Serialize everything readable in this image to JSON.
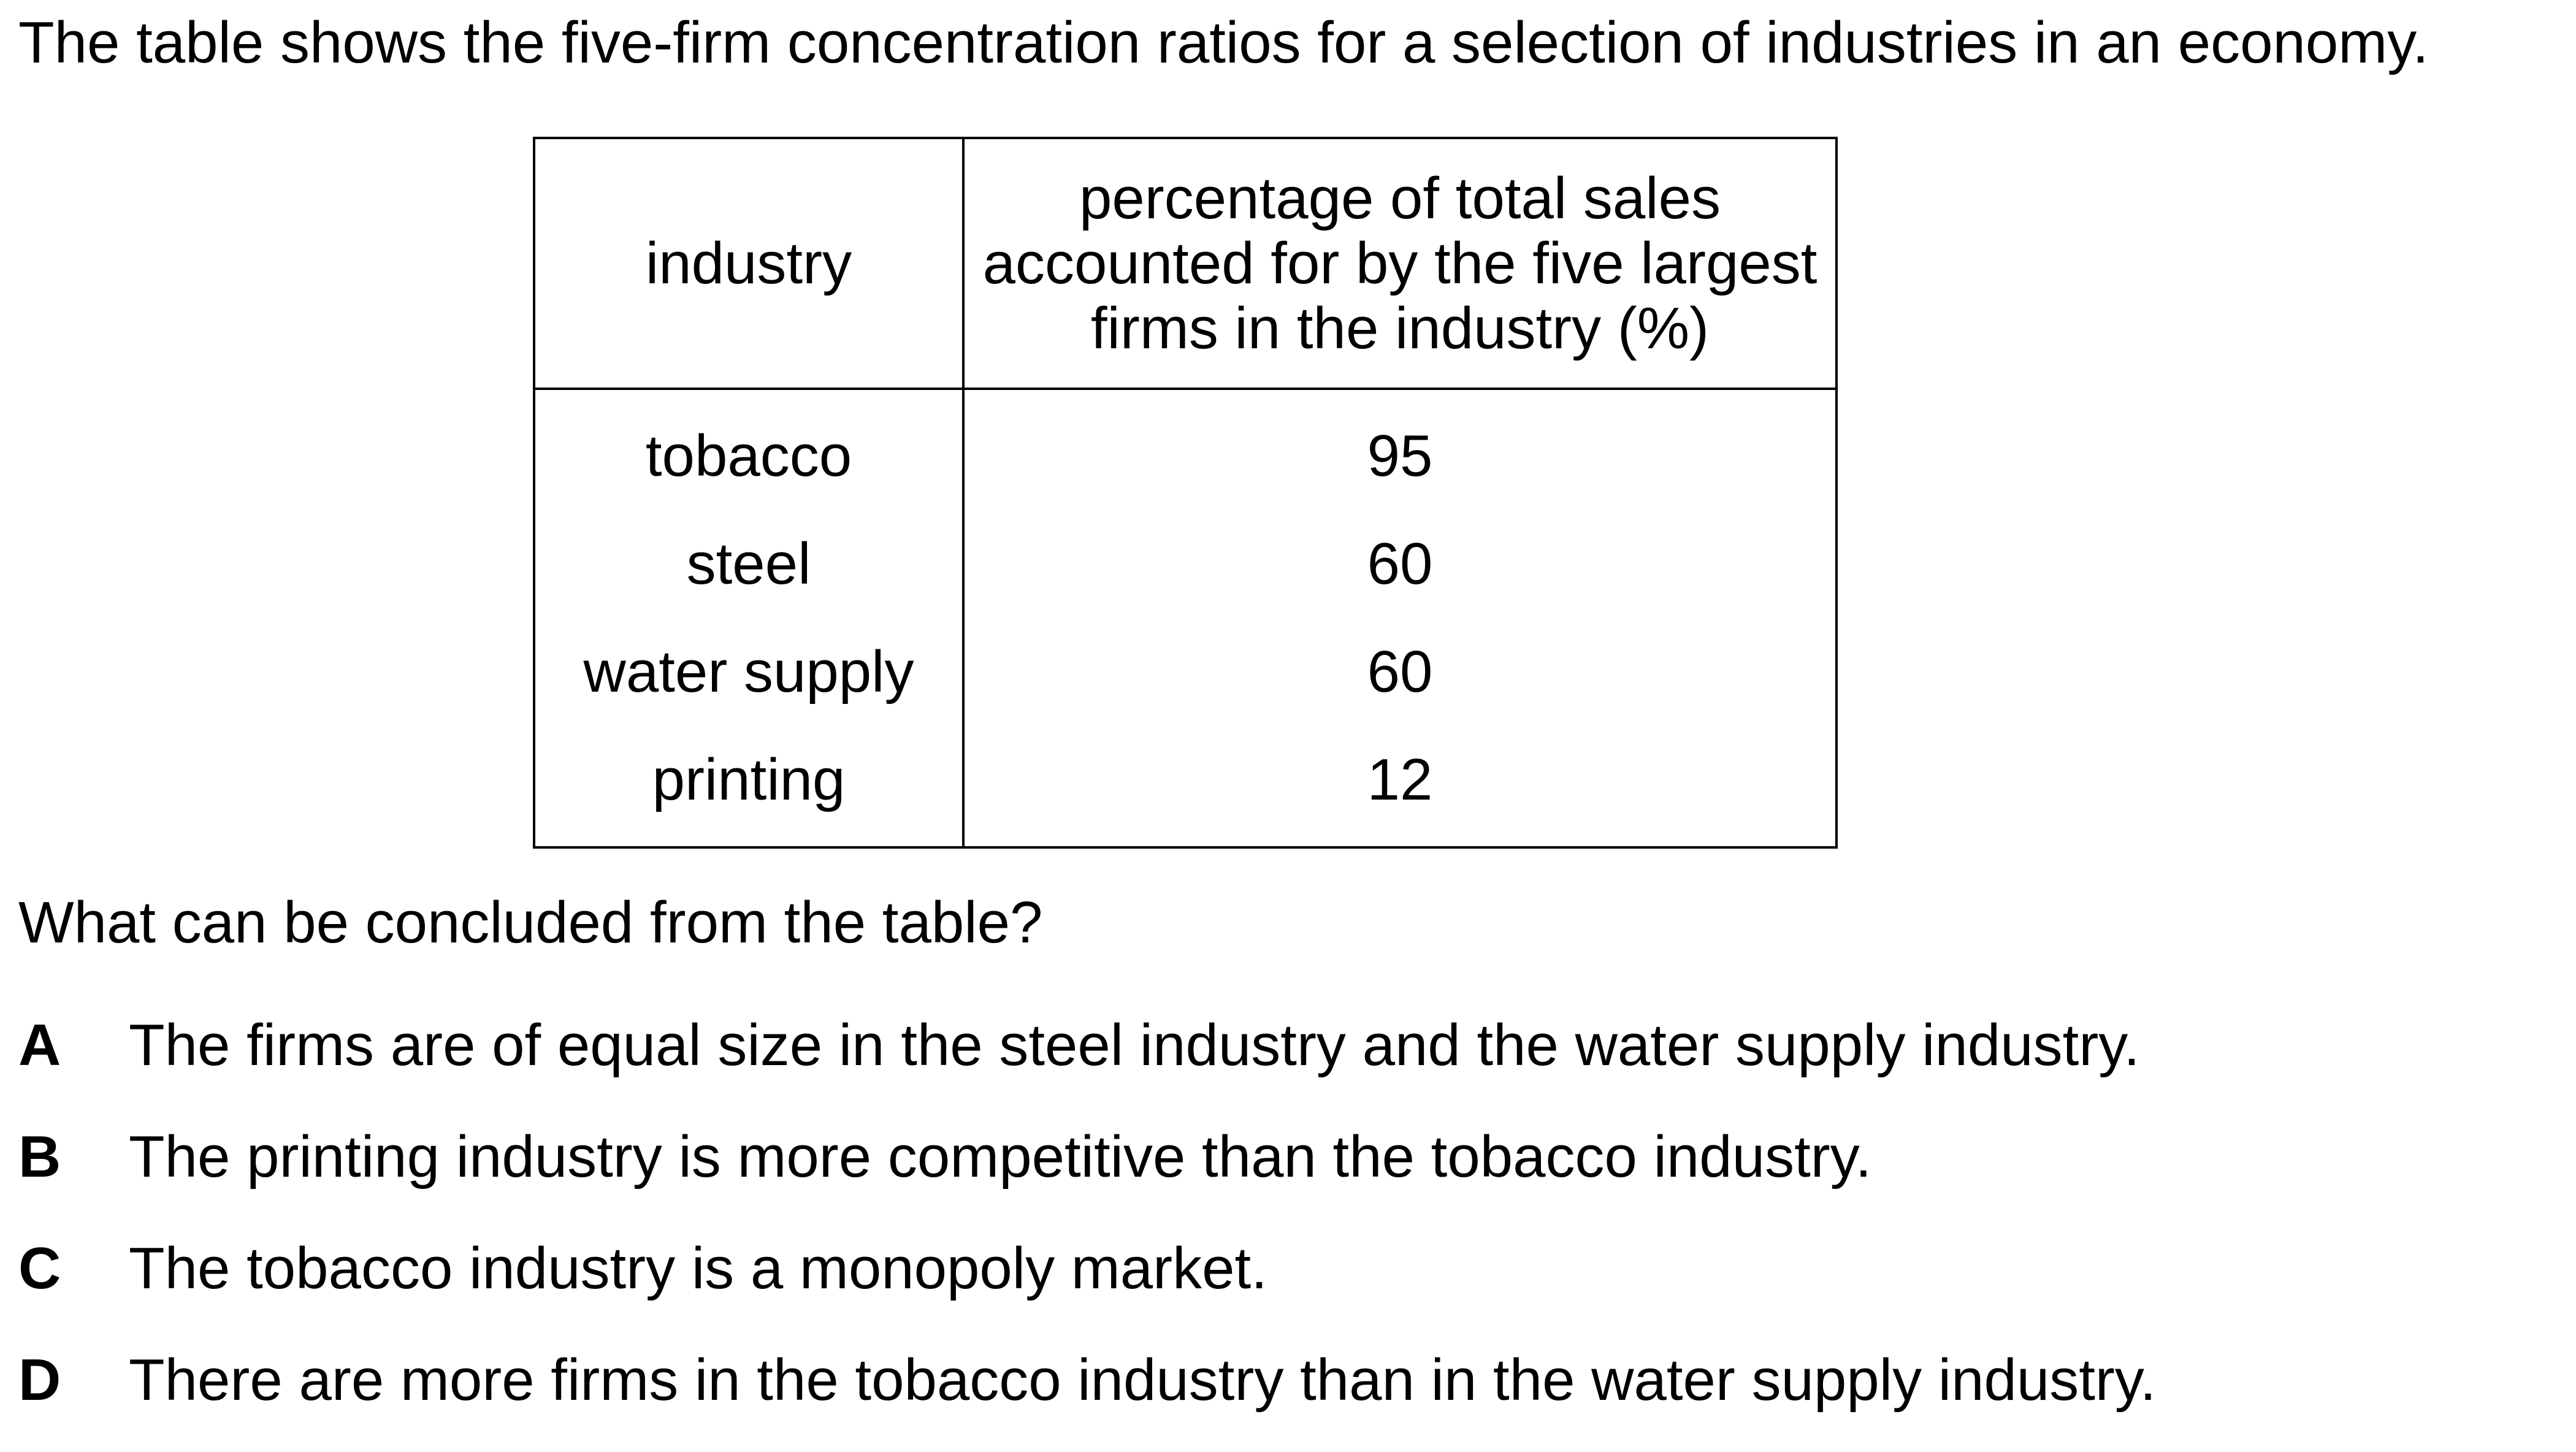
{
  "intro": "The table shows the five-firm concentration ratios for a selection of industries in an economy.",
  "table": {
    "headers": [
      "industry",
      "percentage of total sales accounted for by the five largest firms in the industry (%)"
    ],
    "header_lines": [
      "percentage of total sales",
      "accounted for by the five largest",
      "firms in the industry (%)"
    ],
    "rows": [
      {
        "industry": "tobacco",
        "percentage": "95"
      },
      {
        "industry": "steel",
        "percentage": "60"
      },
      {
        "industry": "water supply",
        "percentage": "60"
      },
      {
        "industry": "printing",
        "percentage": "12"
      }
    ]
  },
  "question": "What can be concluded from the table?",
  "options": [
    {
      "letter": "A",
      "text": "The firms are of equal size in the steel industry and the water supply industry."
    },
    {
      "letter": "B",
      "text": "The printing industry is more competitive than the tobacco industry."
    },
    {
      "letter": "C",
      "text": "The tobacco industry is a monopoly market."
    },
    {
      "letter": "D",
      "text": "There are more firms in the tobacco industry than in the water supply industry."
    }
  ]
}
